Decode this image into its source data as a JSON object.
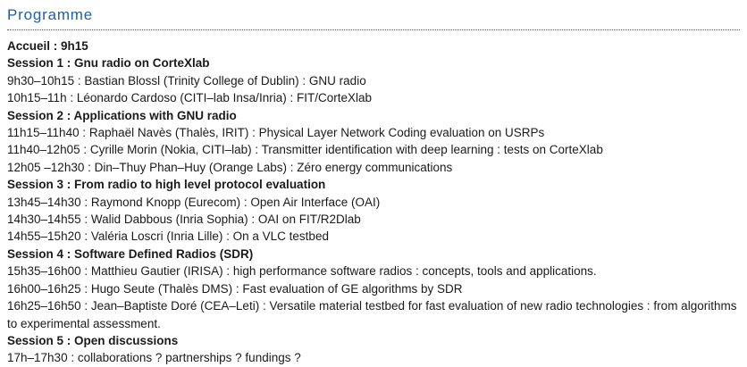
{
  "page": {
    "title": "Programme",
    "accent_color": "#1e5fa9",
    "text_color": "#1a1a1a",
    "background_color": "#ffffff"
  },
  "programme": {
    "accueil": "Accueil : 9h15",
    "sessions": [
      {
        "title": "Session 1 : Gnu radio on CorteXlab",
        "items": [
          "9h30–10h15 : Bastian Blossl (Trinity College of Dublin) : GNU radio",
          "10h15–11h : Léonardo Cardoso (CITI–lab Insa/Inria) : FIT/CorteXlab"
        ]
      },
      {
        "title": "Session 2 : Applications with GNU radio",
        "items": [
          "11h15–11h40 : Raphaël Navès (Thalès, IRIT) : Physical Layer Network Coding evaluation on USRPs",
          "11h40–12h05 : Cyrille Morin (Nokia, CITI–lab) : Transmitter identification with deep learning : tests on CorteXlab",
          "12h05 –12h30 : Din–Thuy Phan–Huy (Orange Labs) : Zéro energy communications"
        ]
      },
      {
        "title": "Session 3 : From radio to high level protocol evaluation",
        "items": [
          "13h45–14h30 : Raymond Knopp (Eurecom) : Open Air Interface (OAI)",
          "14h30–14h55 : Walid Dabbous (Inria Sophia) : OAI on FIT/R2Dlab",
          "14h55–15h20 : Valéria Loscri (Inria Lille) : On a VLC testbed"
        ]
      },
      {
        "title": "Session 4 : Software Defined Radios (SDR)",
        "items": [
          "15h35–16h00 : Matthieu Gautier (IRISA) : high performance software radios : concepts, tools and applications.",
          "16h00–16h25 : Hugo Seute (Thalès DMS) : Fast evaluation of GE algorithms by SDR",
          "16h25–16h50 : Jean–Baptiste Doré (CEA–Leti) : Versatile material testbed for fast evaluation of new radio technologies : from algorithms to experimental assessment."
        ]
      },
      {
        "title": "Session 5 : Open discussions",
        "items": [
          "17h–17h30 : collaborations ? partnerships ? fundings ?"
        ]
      }
    ]
  }
}
